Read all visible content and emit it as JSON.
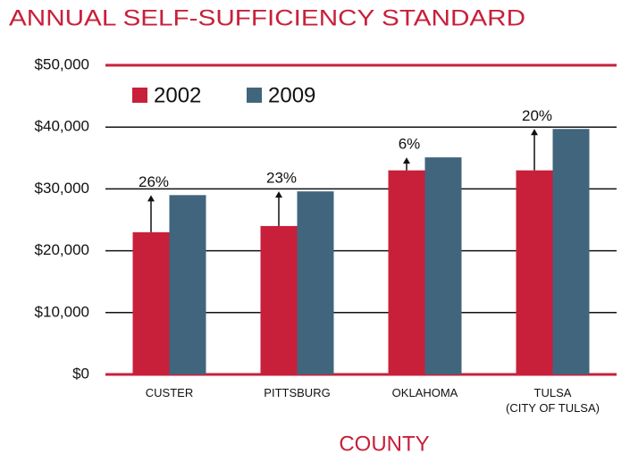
{
  "chart_data": {
    "type": "bar",
    "title": "ANNUAL SELF-SUFFICIENCY STANDARD",
    "xlabel": "COUNTY",
    "categories": [
      "CUSTER",
      "PITTSBURG",
      "OKLAHOMA",
      "TULSA\n(CITY OF TULSA)"
    ],
    "series": [
      {
        "name": "2002",
        "color": "#c8203a",
        "values": [
          23000,
          24000,
          33000,
          33000
        ]
      },
      {
        "name": "2009",
        "color": "#41657d",
        "values": [
          29000,
          29600,
          35100,
          39700
        ]
      }
    ],
    "annotations": [
      "26%",
      "23%",
      "6%",
      "20%"
    ],
    "ylim": [
      0,
      50000
    ],
    "yticks": [
      {
        "value": 0,
        "label": "$0"
      },
      {
        "value": 10000,
        "label": "$10,000"
      },
      {
        "value": 20000,
        "label": "$20,000"
      },
      {
        "value": 30000,
        "label": "$30,000"
      },
      {
        "value": 40000,
        "label": "$40,000"
      },
      {
        "value": 50000,
        "label": "$50,000"
      }
    ],
    "grid": true
  }
}
